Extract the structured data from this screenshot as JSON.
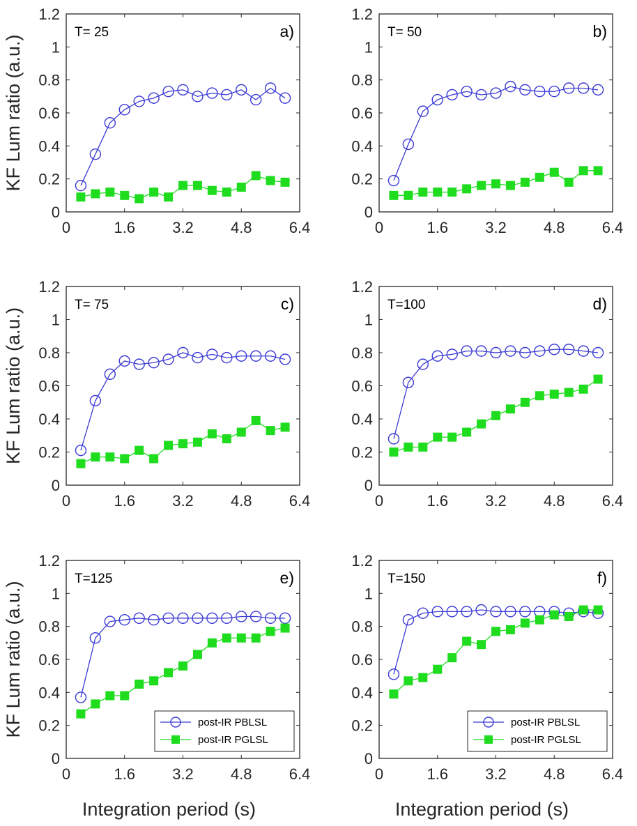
{
  "chart_data": {
    "type": "line",
    "ylabel": "KF Lum ratio (a.u.)",
    "xlabel": "Integration period (s)",
    "xlim": [
      0,
      6.4
    ],
    "ylim": [
      0,
      1.2
    ],
    "xticks": [
      0,
      1.6,
      3.2,
      4.8,
      6.4
    ],
    "xtick_labels": [
      "0",
      "1.6",
      "3.2",
      "4.8",
      "6.4"
    ],
    "yticks": [
      0,
      0.2,
      0.4,
      0.6,
      0.8,
      1.0,
      1.2
    ],
    "ytick_labels": [
      "0",
      "0.2",
      "0.4",
      "0.6",
      "0.8",
      "1",
      "1.2"
    ],
    "grid": false,
    "legend_entries": [
      "post-IR PBLSL",
      "post-IR PGLSL"
    ],
    "colors": {
      "pblsl": "#3a3ad6",
      "pglsl": "#1fdc1f"
    },
    "x": [
      0.4,
      0.8,
      1.2,
      1.6,
      2.0,
      2.4,
      2.8,
      3.2,
      3.6,
      4.0,
      4.4,
      4.8,
      5.2,
      5.6,
      6.0
    ],
    "panels": [
      {
        "title": "T= 25",
        "letter": "a)",
        "legend": false,
        "series": [
          {
            "name": "post-IR PBLSL",
            "marker": "open-circle",
            "values": [
              0.16,
              0.35,
              0.54,
              0.62,
              0.67,
              0.69,
              0.73,
              0.74,
              0.7,
              0.72,
              0.71,
              0.74,
              0.68,
              0.75,
              0.69
            ]
          },
          {
            "name": "post-IR PGLSL",
            "marker": "filled-square",
            "values": [
              0.09,
              0.11,
              0.12,
              0.1,
              0.08,
              0.12,
              0.09,
              0.16,
              0.16,
              0.13,
              0.12,
              0.15,
              0.22,
              0.19,
              0.18
            ]
          }
        ]
      },
      {
        "title": "T= 50",
        "letter": "b)",
        "legend": false,
        "series": [
          {
            "name": "post-IR PBLSL",
            "marker": "open-circle",
            "values": [
              0.19,
              0.41,
              0.61,
              0.68,
              0.71,
              0.73,
              0.71,
              0.72,
              0.76,
              0.74,
              0.73,
              0.73,
              0.75,
              0.75,
              0.74
            ]
          },
          {
            "name": "post-IR PGLSL",
            "marker": "filled-square",
            "values": [
              0.1,
              0.1,
              0.12,
              0.12,
              0.12,
              0.14,
              0.16,
              0.17,
              0.16,
              0.18,
              0.21,
              0.24,
              0.18,
              0.25,
              0.25
            ]
          }
        ]
      },
      {
        "title": "T= 75",
        "letter": "c)",
        "legend": false,
        "series": [
          {
            "name": "post-IR PBLSL",
            "marker": "open-circle",
            "values": [
              0.21,
              0.51,
              0.67,
              0.75,
              0.73,
              0.74,
              0.76,
              0.8,
              0.77,
              0.79,
              0.77,
              0.78,
              0.78,
              0.78,
              0.76
            ]
          },
          {
            "name": "post-IR PGLSL",
            "marker": "filled-square",
            "values": [
              0.13,
              0.17,
              0.17,
              0.16,
              0.21,
              0.16,
              0.24,
              0.25,
              0.26,
              0.31,
              0.28,
              0.32,
              0.39,
              0.33,
              0.35
            ]
          }
        ]
      },
      {
        "title": "T=100",
        "letter": "d)",
        "legend": false,
        "series": [
          {
            "name": "post-IR PBLSL",
            "marker": "open-circle",
            "values": [
              0.28,
              0.62,
              0.73,
              0.78,
              0.79,
              0.81,
              0.81,
              0.8,
              0.81,
              0.8,
              0.81,
              0.82,
              0.82,
              0.81,
              0.8
            ]
          },
          {
            "name": "post-IR PGLSL",
            "marker": "filled-square",
            "values": [
              0.2,
              0.23,
              0.23,
              0.29,
              0.29,
              0.32,
              0.37,
              0.42,
              0.46,
              0.5,
              0.54,
              0.55,
              0.56,
              0.58,
              0.64
            ]
          }
        ]
      },
      {
        "title": "T=125",
        "letter": "e)",
        "legend": true,
        "series": [
          {
            "name": "post-IR PBLSL",
            "marker": "open-circle",
            "values": [
              0.37,
              0.73,
              0.83,
              0.84,
              0.85,
              0.84,
              0.85,
              0.85,
              0.85,
              0.85,
              0.85,
              0.86,
              0.86,
              0.85,
              0.85
            ]
          },
          {
            "name": "post-IR PGLSL",
            "marker": "filled-square",
            "values": [
              0.27,
              0.33,
              0.38,
              0.38,
              0.45,
              0.47,
              0.52,
              0.56,
              0.63,
              0.7,
              0.73,
              0.73,
              0.73,
              0.77,
              0.79
            ]
          }
        ]
      },
      {
        "title": "T=150",
        "letter": "f)",
        "legend": true,
        "series": [
          {
            "name": "post-IR PBLSL",
            "marker": "open-circle",
            "values": [
              0.51,
              0.84,
              0.88,
              0.89,
              0.89,
              0.89,
              0.9,
              0.89,
              0.89,
              0.89,
              0.89,
              0.89,
              0.88,
              0.89,
              0.88
            ]
          },
          {
            "name": "post-IR PGLSL",
            "marker": "filled-square",
            "values": [
              0.39,
              0.47,
              0.49,
              0.54,
              0.61,
              0.71,
              0.69,
              0.77,
              0.78,
              0.82,
              0.84,
              0.87,
              0.86,
              0.9,
              0.9
            ]
          }
        ]
      }
    ]
  }
}
